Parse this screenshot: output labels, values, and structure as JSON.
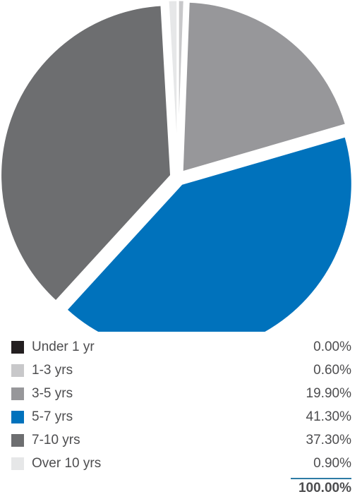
{
  "chart_data": {
    "type": "pie",
    "categories": [
      "Under 1 yr",
      "1-3 yrs",
      "3-5 yrs",
      "5-7 yrs",
      "7-10 yrs",
      "Over 10 yrs"
    ],
    "values": [
      0.0,
      0.6,
      19.9,
      41.3,
      37.3,
      0.9
    ],
    "labels": [
      "0.00%",
      "0.60%",
      "19.90%",
      "41.30%",
      "37.30%",
      "0.90%"
    ],
    "colors": [
      "#231f20",
      "#c8c8ca",
      "#97979a",
      "#0072bc",
      "#6d6e70",
      "#e6e7e8"
    ],
    "total_label": "100.00%",
    "total_rule_color": "#2e7ca5",
    "exploded": true,
    "start_angle": "top",
    "direction": "clockwise"
  }
}
